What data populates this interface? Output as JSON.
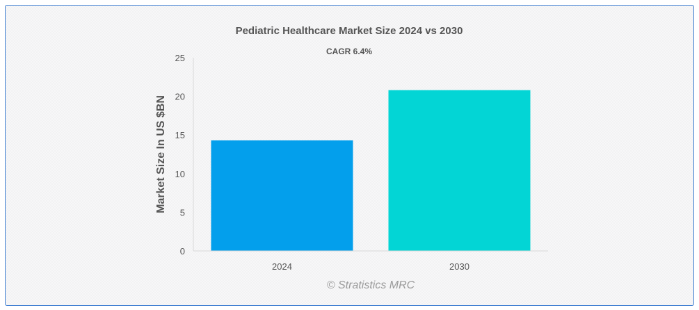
{
  "chart_data": {
    "type": "bar",
    "title": "Pediatric Healthcare Market Size 2024 vs 2030",
    "subtitle": "CAGR 6.4%",
    "xlabel": "",
    "ylabel": "Market Size In US $BN",
    "categories": [
      "2024",
      "2030"
    ],
    "values": [
      14.3,
      20.8
    ],
    "colors": [
      "#039fec",
      "#03d5d5"
    ],
    "ylim": [
      0,
      25
    ],
    "yticks": [
      "0",
      "5",
      "10",
      "15",
      "20",
      "25"
    ],
    "grid": false,
    "legend": "none"
  },
  "credit": "© Stratistics MRC"
}
